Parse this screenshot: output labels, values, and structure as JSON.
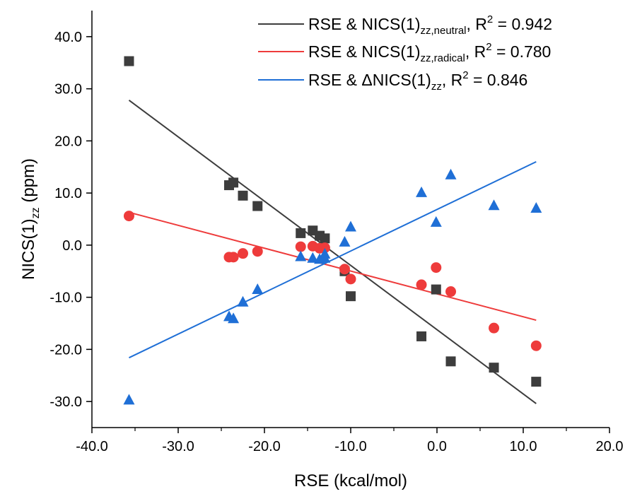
{
  "chart_data": {
    "type": "scatter",
    "xlabel": "RSE (kcal/mol)",
    "ylabel": {
      "main": "NICS(1)",
      "sub": "zz",
      "tail": " (ppm)"
    },
    "xlim": [
      -40,
      20
    ],
    "ylim": [
      -35,
      45
    ],
    "xticks": [
      -40,
      -30,
      -20,
      -10,
      0,
      10,
      20
    ],
    "xtick_labels": [
      "-40.0",
      "-30.0",
      "-20.0",
      "-10.0",
      "0.0",
      "10.0",
      "20.0"
    ],
    "yticks": [
      -30,
      -20,
      -10,
      0,
      10,
      20,
      30,
      40
    ],
    "ytick_labels": [
      "-30.0",
      "-20.0",
      "-10.0",
      "0.0",
      "10.0",
      "20.0",
      "30.0",
      "40.0"
    ],
    "legend_position": "top-right",
    "series": [
      {
        "marker": "square",
        "color": "#3d3d3d",
        "line_color": "#3d3d3d",
        "legend": {
          "pre": "RSE & NICS(1)",
          "sub": "zz,neutral",
          "mid": ", R",
          "sup": "2",
          "post": " = 0.942"
        },
        "x": [
          -35.7,
          -24.1,
          -23.6,
          -22.5,
          -20.8,
          -15.8,
          -14.4,
          -13.6,
          -13.0,
          -10.7,
          -10.0,
          -1.8,
          -0.1,
          1.6,
          6.6,
          11.5
        ],
        "y": [
          35.3,
          11.5,
          12.0,
          9.5,
          7.5,
          2.3,
          2.8,
          1.8,
          1.3,
          -5.0,
          -9.8,
          -17.5,
          -8.5,
          -22.3,
          -23.5,
          -26.2
        ],
        "fit": {
          "x": [
            -35.7,
            11.5
          ],
          "y": [
            27.8,
            -30.4
          ]
        }
      },
      {
        "marker": "circle",
        "color": "#ee3b3b",
        "line_color": "#ee3b3b",
        "legend": {
          "pre": "RSE & NICS(1)",
          "sub": "zz,radical",
          "mid": ", R",
          "sup": "2",
          "post": " = 0.780"
        },
        "x": [
          -35.7,
          -24.1,
          -23.6,
          -22.5,
          -20.8,
          -15.8,
          -14.4,
          -13.6,
          -13.0,
          -10.7,
          -10.0,
          -1.8,
          -0.1,
          1.6,
          6.6,
          11.5
        ],
        "y": [
          5.6,
          -2.3,
          -2.3,
          -1.6,
          -1.2,
          -0.3,
          -0.2,
          -0.6,
          -0.5,
          -4.6,
          -6.5,
          -7.6,
          -4.3,
          -8.9,
          -15.9,
          -19.3
        ],
        "fit": {
          "x": [
            -35.7,
            11.5
          ],
          "y": [
            6.3,
            -14.4
          ]
        }
      },
      {
        "marker": "triangle",
        "color": "#1f6fd6",
        "line_color": "#1f6fd6",
        "legend": {
          "pre": "RSE & ΔNICS(1)",
          "sub": "zz",
          "mid": ", R",
          "sup": "2",
          "post": " = 0.846"
        },
        "x": [
          -35.7,
          -24.1,
          -23.6,
          -22.5,
          -20.8,
          -15.8,
          -14.4,
          -13.6,
          -13.0,
          -13.0,
          -10.7,
          -10.0,
          -1.8,
          -0.1,
          1.6,
          6.6,
          11.5
        ],
        "y": [
          -29.8,
          -13.8,
          -14.2,
          -11.0,
          -8.6,
          -2.3,
          -2.6,
          -2.8,
          -1.8,
          -2.6,
          0.5,
          3.4,
          10.0,
          4.3,
          13.4,
          7.5,
          7.0
        ],
        "fit": {
          "x": [
            -35.7,
            11.5
          ],
          "y": [
            -21.6,
            16.0
          ]
        }
      }
    ]
  }
}
